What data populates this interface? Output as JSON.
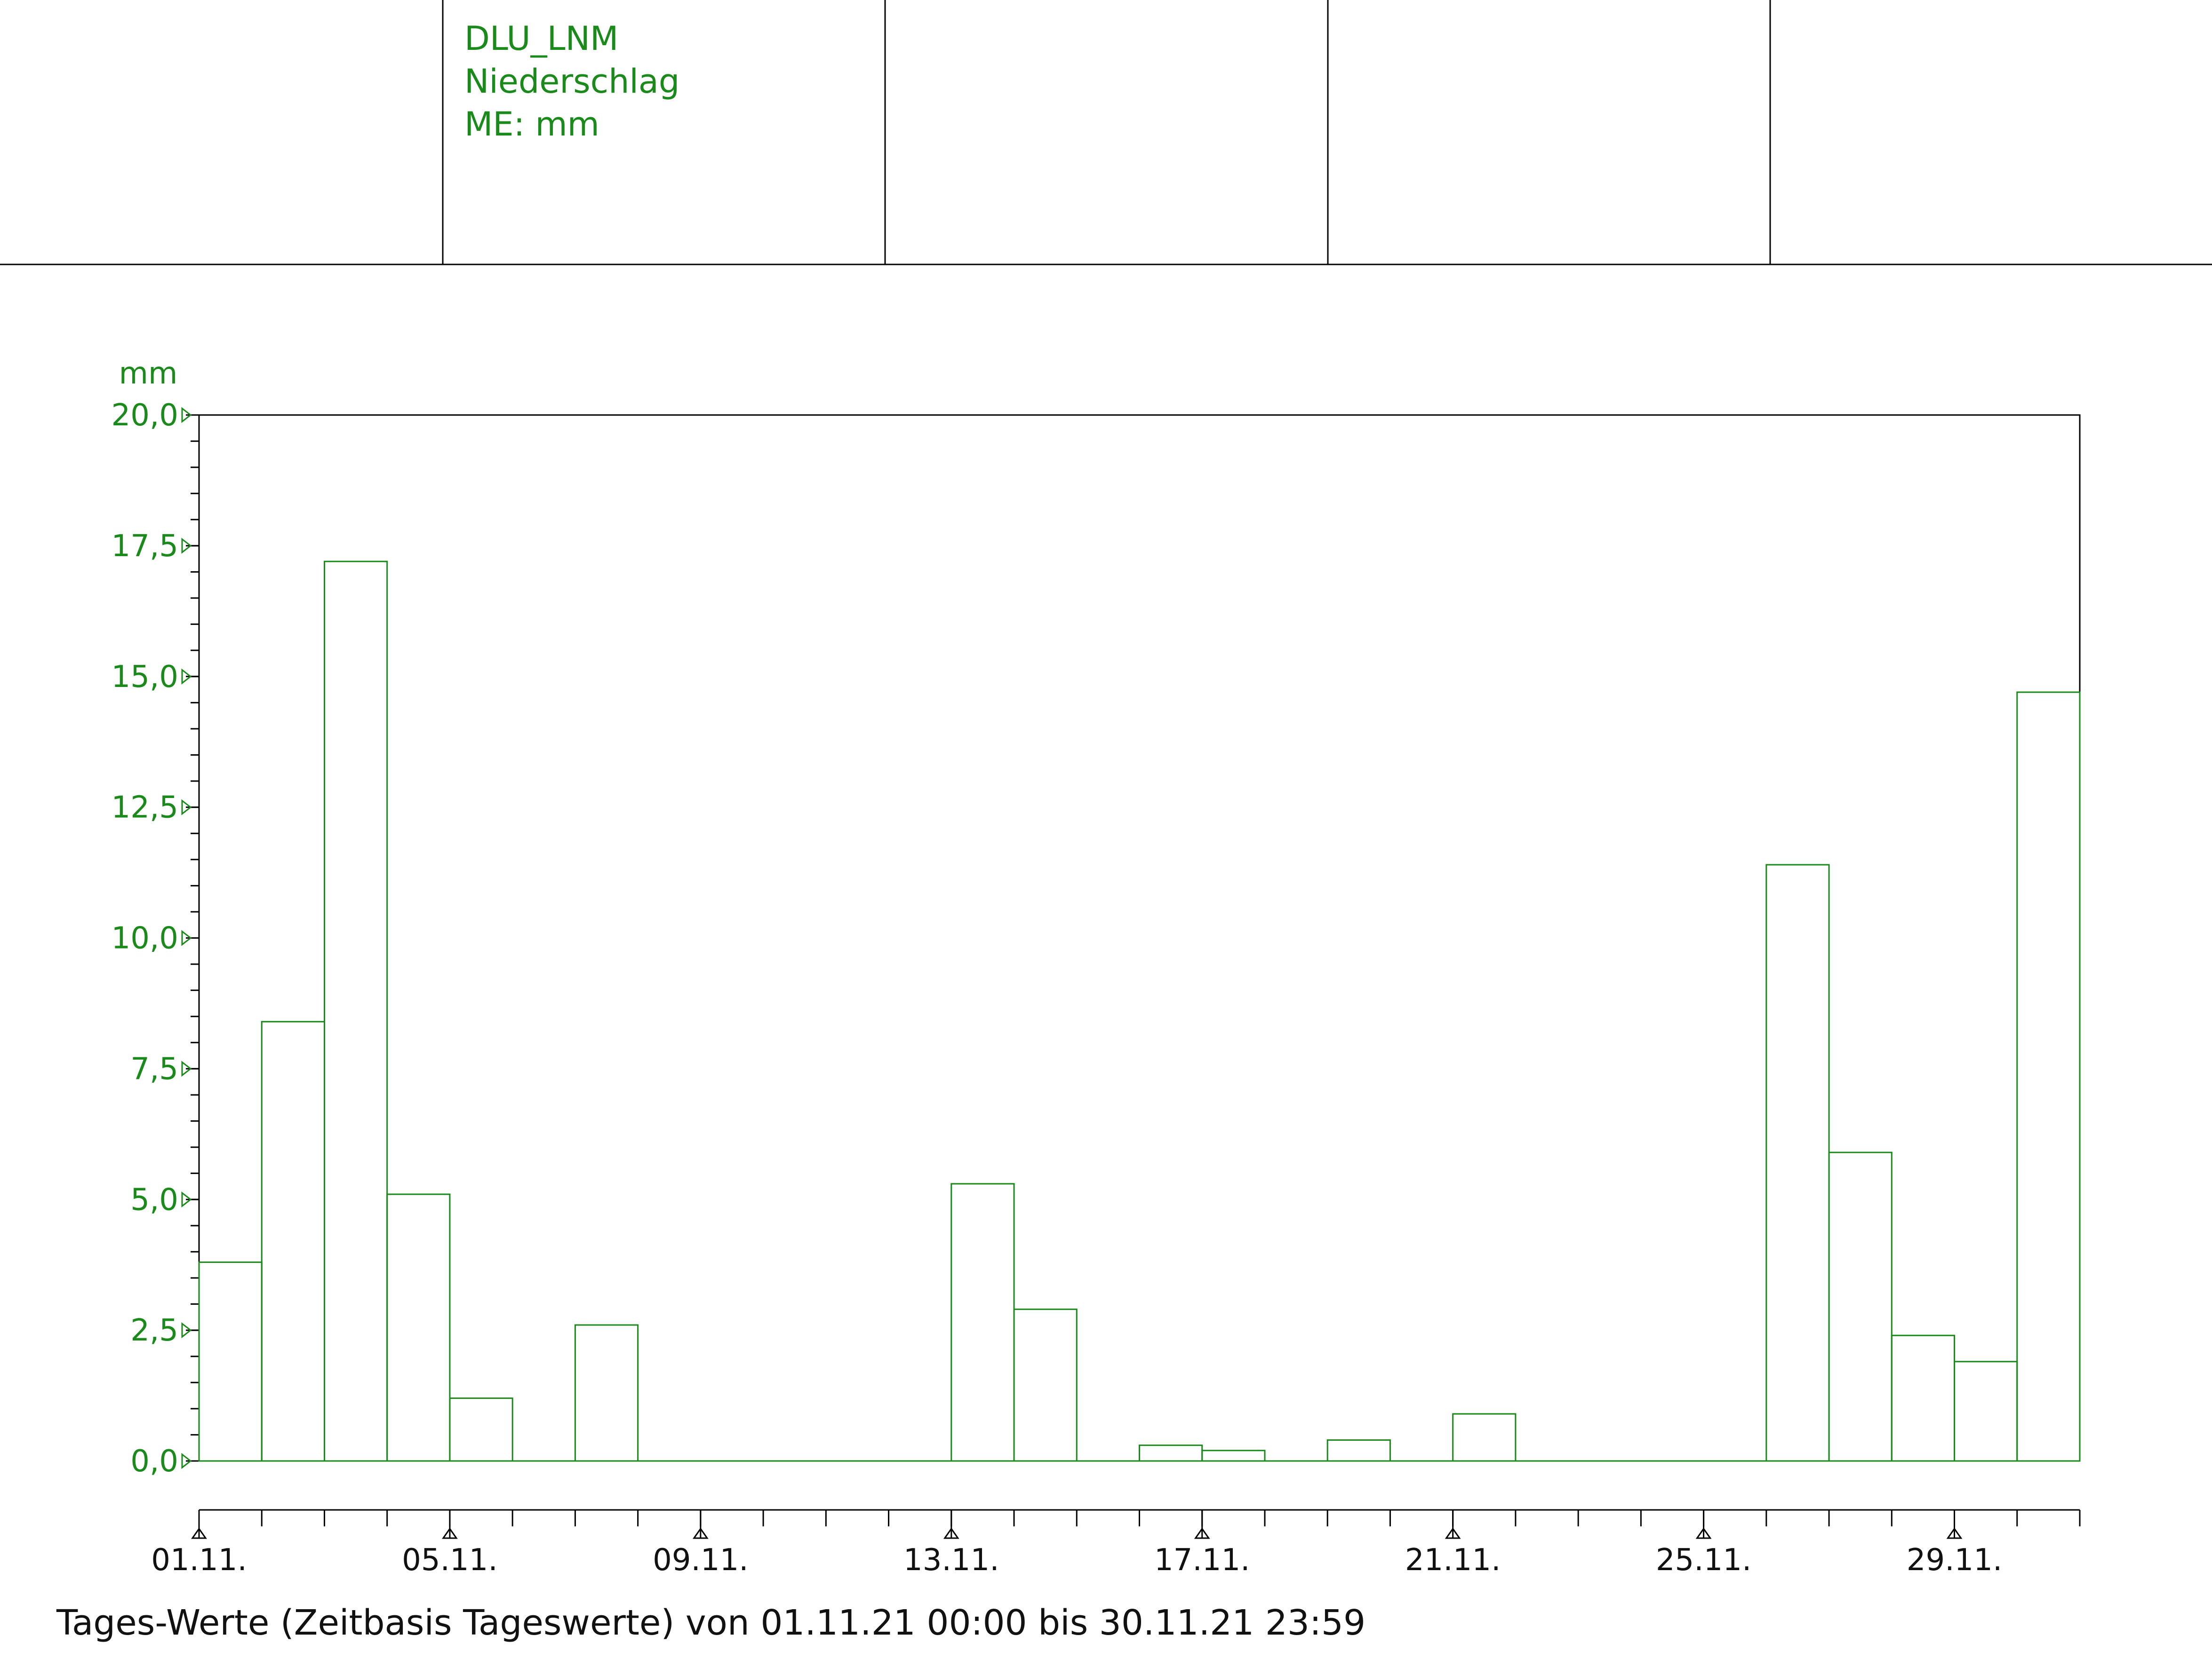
{
  "header": {
    "station": "DLU_LNM",
    "parameter": "Niederschlag",
    "unit_label": "ME: mm"
  },
  "footer": {
    "caption": "Tages-Werte (Zeitbasis Tageswerte) von 01.11.21 00:00 bis 30.11.21 23:59"
  },
  "colors": {
    "series": "#1a8a1a",
    "axis": "#000000",
    "text": "#111111"
  },
  "chart_data": {
    "type": "bar",
    "ylabel": "mm",
    "ylim": [
      0,
      20
    ],
    "yticks": [
      "0,0",
      "2,5",
      "5,0",
      "7,5",
      "10,0",
      "12,5",
      "15,0",
      "17,5",
      "20,0"
    ],
    "xticks": [
      "01.11.",
      "05.11.",
      "09.11.",
      "13.11.",
      "17.11.",
      "21.11.",
      "25.11.",
      "29.11."
    ],
    "grid": false,
    "categories": [
      "01.11.",
      "02.11.",
      "03.11.",
      "04.11.",
      "05.11.",
      "06.11.",
      "07.11.",
      "08.11.",
      "09.11.",
      "10.11.",
      "11.11.",
      "12.11.",
      "13.11.",
      "14.11.",
      "15.11.",
      "16.11.",
      "17.11.",
      "18.11.",
      "19.11.",
      "20.11.",
      "21.11.",
      "22.11.",
      "23.11.",
      "24.11.",
      "25.11.",
      "26.11.",
      "27.11.",
      "28.11.",
      "29.11.",
      "30.11."
    ],
    "values": [
      3.8,
      8.4,
      17.2,
      5.1,
      1.2,
      0,
      2.6,
      0,
      0,
      0,
      0,
      0,
      5.3,
      2.9,
      0,
      0.3,
      0.2,
      0,
      0.4,
      0,
      0.9,
      0,
      0,
      0,
      0,
      11.4,
      5.9,
      2.4,
      1.9,
      14.7
    ]
  }
}
